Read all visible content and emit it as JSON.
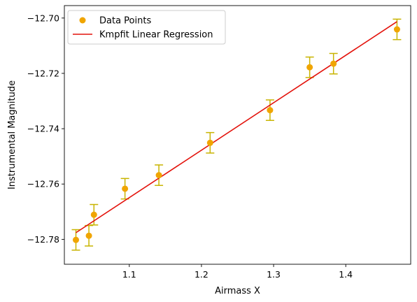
{
  "chart_data": {
    "type": "scatter",
    "xlabel": "Airmass X",
    "ylabel": "Instrumental Magnitude",
    "xlim": [
      1.01,
      1.49
    ],
    "ylim": [
      -12.789,
      -12.6955
    ],
    "x_ticks": [
      1.1,
      1.2,
      1.3,
      1.4
    ],
    "x_tick_labels": [
      "1.1",
      "1.2",
      "1.3",
      "1.4"
    ],
    "y_ticks": [
      -12.78,
      -12.76,
      -12.74,
      -12.72,
      -12.7
    ],
    "y_tick_labels": [
      "−12.78",
      "−12.76",
      "−12.74",
      "−12.72",
      "−12.70"
    ],
    "grid": false,
    "legend_position": "top-left",
    "series": [
      {
        "name": "Data Points",
        "kind": "scatter",
        "color": "#f0a500",
        "errorbar_color": "#c8b400",
        "x": [
          1.026,
          1.044,
          1.051,
          1.094,
          1.141,
          1.212,
          1.295,
          1.35,
          1.383,
          1.471
        ],
        "y": [
          -12.7802,
          -12.7787,
          -12.7711,
          -12.7617,
          -12.7568,
          -12.7451,
          -12.7333,
          -12.7178,
          -12.7165,
          -12.7041
        ],
        "yerr": [
          0.0037,
          0.0037,
          0.0037,
          0.0037,
          0.0037,
          0.0037,
          0.0037,
          0.0037,
          0.0037,
          0.0037
        ]
      },
      {
        "name": "Kmpfit Linear Regression",
        "kind": "line",
        "color": "#e3120b",
        "x": [
          1.026,
          1.471
        ],
        "y": [
          -12.7776,
          -12.7013
        ]
      }
    ]
  }
}
